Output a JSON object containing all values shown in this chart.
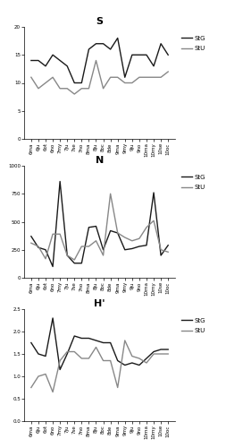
{
  "x_labels": [
    "6ma",
    "6ju",
    "6ot",
    "6no",
    "7my",
    "7ju",
    "7se",
    "7no",
    "8ma",
    "8ju",
    "8oc",
    "8de",
    "9ma",
    "9my",
    "9ju",
    "9no",
    "10ma",
    "10my",
    "10se",
    "10oc"
  ],
  "S_StG": [
    14,
    14,
    13,
    15,
    14,
    13,
    10,
    10,
    16,
    17,
    17,
    16,
    18,
    11,
    15,
    15,
    15,
    13,
    17,
    15
  ],
  "S_StU": [
    11,
    9,
    10,
    11,
    9,
    9,
    8,
    9,
    9,
    14,
    9,
    11,
    11,
    10,
    10,
    11,
    11,
    11,
    11,
    12
  ],
  "N_StG": [
    370,
    270,
    250,
    100,
    860,
    200,
    130,
    130,
    450,
    460,
    250,
    420,
    400,
    250,
    260,
    280,
    290,
    760,
    200,
    290
  ],
  "N_StU": [
    310,
    280,
    170,
    390,
    390,
    200,
    160,
    280,
    280,
    330,
    200,
    750,
    400,
    360,
    330,
    350,
    450,
    510,
    250,
    230
  ],
  "Hp_StG": [
    1.75,
    1.5,
    1.45,
    2.3,
    1.15,
    1.5,
    1.9,
    1.85,
    1.85,
    1.8,
    1.75,
    1.75,
    1.35,
    1.25,
    1.3,
    1.25,
    1.4,
    1.55,
    1.6,
    1.6
  ],
  "Hp_StU": [
    0.75,
    1.0,
    1.05,
    0.65,
    1.35,
    1.55,
    1.55,
    1.4,
    1.4,
    1.65,
    1.35,
    1.35,
    0.75,
    1.8,
    1.45,
    1.4,
    1.3,
    1.5,
    1.5,
    1.5
  ],
  "color_StG": "#1a1a1a",
  "color_StU": "#888888",
  "bg_color": "#ffffff",
  "S_ylim": [
    0,
    20
  ],
  "S_yticks": [
    0,
    5,
    10,
    15,
    20
  ],
  "N_ylim": [
    0,
    1000
  ],
  "N_yticks": [
    0,
    250,
    500,
    750,
    1000
  ],
  "Hp_ylim": [
    0,
    2.5
  ],
  "Hp_yticks": [
    0,
    0.5,
    1.0,
    1.5,
    2.0,
    2.5
  ],
  "line_width": 1.0,
  "title_fontsize": 8,
  "tick_fontsize": 4.0,
  "legend_fontsize": 5.0
}
